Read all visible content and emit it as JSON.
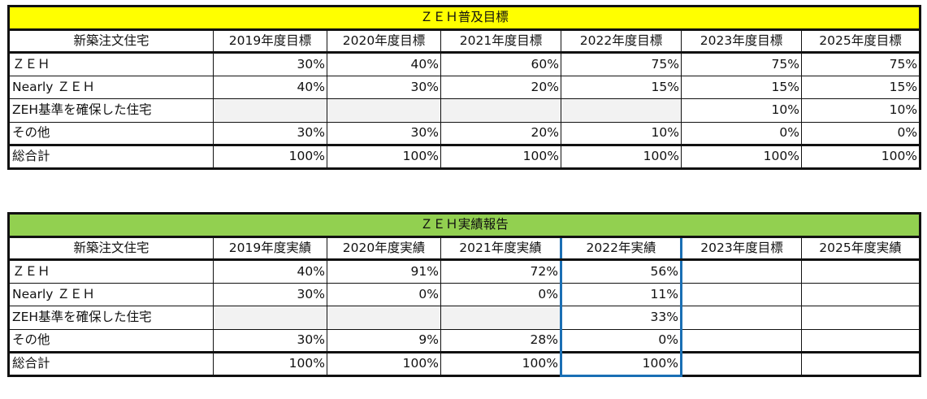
{
  "colors": {
    "target_banner": "#ffff00",
    "report_banner": "#92d050",
    "highlight": "#1a6fb4",
    "empty_cell": "#f2f2f2"
  },
  "targets": {
    "title": "ＺＥＨ普及目標",
    "headers": [
      "新築注文住宅",
      "2019年度目標",
      "2020年度目標",
      "2021年度目標",
      "2022年度目標",
      "2023年度目標",
      "2025年度目標"
    ],
    "rows": [
      {
        "label": "ＺＥＨ",
        "values": [
          "30%",
          "40%",
          "60%",
          "75%",
          "75%",
          "75%"
        ]
      },
      {
        "label": "Nearly ＺＥＨ",
        "values": [
          "40%",
          "30%",
          "20%",
          "15%",
          "15%",
          "15%"
        ]
      },
      {
        "label": "ZEH基準を確保した住宅",
        "values": [
          "",
          "",
          "",
          "",
          "10%",
          "10%"
        ]
      },
      {
        "label": "その他",
        "values": [
          "30%",
          "30%",
          "20%",
          "10%",
          "0%",
          "0%"
        ]
      },
      {
        "label": "総合計",
        "values": [
          "100%",
          "100%",
          "100%",
          "100%",
          "100%",
          "100%"
        ]
      }
    ]
  },
  "results": {
    "title": "ＺＥＨ実績報告",
    "headers": [
      "新築注文住宅",
      "2019年度実績",
      "2020年度実績",
      "2021年度実績",
      "2022年実績",
      "2023年度目標",
      "2025年度実績"
    ],
    "rows": [
      {
        "label": "ＺＥＨ",
        "values": [
          "40%",
          "91%",
          "72%",
          "56%",
          "",
          ""
        ]
      },
      {
        "label": "Nearly ＺＥＨ",
        "values": [
          "30%",
          "0%",
          "0%",
          "11%",
          "",
          ""
        ]
      },
      {
        "label": "ZEH基準を確保した住宅",
        "values": [
          "",
          "",
          "",
          "33%",
          "",
          ""
        ]
      },
      {
        "label": "その他",
        "values": [
          "30%",
          "9%",
          "28%",
          "0%",
          "",
          ""
        ]
      },
      {
        "label": "総合計",
        "values": [
          "100%",
          "100%",
          "100%",
          "100%",
          "",
          ""
        ]
      }
    ]
  }
}
